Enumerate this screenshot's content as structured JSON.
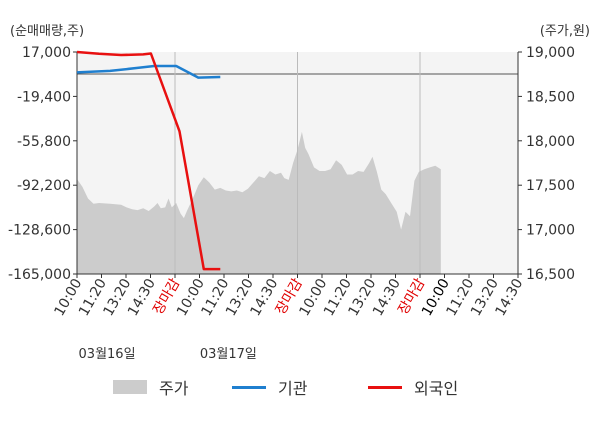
{
  "chart_data": {
    "type": "line",
    "left_unit": "(순매매량,주)",
    "right_unit": "(주가,원)",
    "left_axis": {
      "ticks": [
        "17,000",
        "-19,400",
        "-55,800",
        "-92,200",
        "-128,600",
        "-165,000"
      ],
      "min": -165000,
      "max": 17000
    },
    "right_axis": {
      "ticks": [
        "19,000",
        "18,500",
        "18,000",
        "17,500",
        "17,000",
        "16,500"
      ],
      "min": 16500,
      "max": 19000
    },
    "x_labels": [
      "10:00",
      "11:20",
      "13:20",
      "14:30",
      "장마감",
      "10:00",
      "11:20",
      "13:20",
      "14:30",
      "장마감",
      "10:00",
      "11:20",
      "13:20",
      "14:30",
      "장마감",
      "10:00",
      "11:20",
      "13:20",
      "14:30"
    ],
    "x_label_colors": [
      "#333333",
      "#333333",
      "#333333",
      "#333333",
      "#e00000",
      "#333333",
      "#333333",
      "#333333",
      "#333333",
      "#e00000",
      "#333333",
      "#333333",
      "#333333",
      "#333333",
      "#e00000",
      "#000000",
      "#333333",
      "#333333",
      "#333333"
    ],
    "dates": [
      "03월16일",
      "03월17일"
    ],
    "series": [
      {
        "name": "주가",
        "kind": "area",
        "axis": "right",
        "color": "#cccccc",
        "values": [
          {
            "x": 0,
            "y": 17570
          },
          {
            "x": 0.5,
            "y": 17480
          },
          {
            "x": 1,
            "y": 17350
          },
          {
            "x": 1.5,
            "y": 17290
          },
          {
            "x": 2,
            "y": 17300
          },
          {
            "x": 3,
            "y": 17290
          },
          {
            "x": 4,
            "y": 17280
          },
          {
            "x": 4.5,
            "y": 17250
          },
          {
            "x": 5,
            "y": 17230
          },
          {
            "x": 5.5,
            "y": 17220
          },
          {
            "x": 6,
            "y": 17240
          },
          {
            "x": 6.5,
            "y": 17210
          },
          {
            "x": 7,
            "y": 17260
          },
          {
            "x": 7.3,
            "y": 17300
          },
          {
            "x": 7.6,
            "y": 17240
          },
          {
            "x": 8.0,
            "y": 17250
          },
          {
            "x": 8.3,
            "y": 17350
          },
          {
            "x": 8.6,
            "y": 17250
          },
          {
            "x": 9,
            "y": 17300
          },
          {
            "x": 9.4,
            "y": 17180
          },
          {
            "x": 9.7,
            "y": 17130
          },
          {
            "x": 10,
            "y": 17220
          },
          {
            "x": 10.5,
            "y": 17350
          },
          {
            "x": 11,
            "y": 17500
          },
          {
            "x": 11.5,
            "y": 17590
          },
          {
            "x": 12,
            "y": 17530
          },
          {
            "x": 12.5,
            "y": 17450
          },
          {
            "x": 13,
            "y": 17470
          },
          {
            "x": 13.5,
            "y": 17440
          },
          {
            "x": 14,
            "y": 17430
          },
          {
            "x": 14.5,
            "y": 17440
          },
          {
            "x": 15,
            "y": 17420
          },
          {
            "x": 15.5,
            "y": 17460
          },
          {
            "x": 16,
            "y": 17530
          },
          {
            "x": 16.5,
            "y": 17600
          },
          {
            "x": 17,
            "y": 17580
          },
          {
            "x": 17.5,
            "y": 17660
          },
          {
            "x": 18,
            "y": 17620
          },
          {
            "x": 18.5,
            "y": 17640
          },
          {
            "x": 18.8,
            "y": 17580
          },
          {
            "x": 19.2,
            "y": 17560
          },
          {
            "x": 19.6,
            "y": 17750
          },
          {
            "x": 20,
            "y": 17900
          },
          {
            "x": 20.4,
            "y": 18100
          },
          {
            "x": 20.7,
            "y": 17920
          },
          {
            "x": 21,
            "y": 17850
          },
          {
            "x": 21.5,
            "y": 17700
          },
          {
            "x": 22,
            "y": 17660
          },
          {
            "x": 22.5,
            "y": 17660
          },
          {
            "x": 23,
            "y": 17680
          },
          {
            "x": 23.5,
            "y": 17780
          },
          {
            "x": 24,
            "y": 17730
          },
          {
            "x": 24.5,
            "y": 17620
          },
          {
            "x": 25,
            "y": 17620
          },
          {
            "x": 25.5,
            "y": 17660
          },
          {
            "x": 26,
            "y": 17650
          },
          {
            "x": 26.5,
            "y": 17750
          },
          {
            "x": 26.8,
            "y": 17820
          },
          {
            "x": 27.2,
            "y": 17650
          },
          {
            "x": 27.6,
            "y": 17450
          },
          {
            "x": 28,
            "y": 17400
          },
          {
            "x": 28.5,
            "y": 17300
          },
          {
            "x": 29,
            "y": 17200
          },
          {
            "x": 29.4,
            "y": 17000
          },
          {
            "x": 29.8,
            "y": 17200
          },
          {
            "x": 30.2,
            "y": 17150
          },
          {
            "x": 30.6,
            "y": 17550
          },
          {
            "x": 31,
            "y": 17650
          },
          {
            "x": 31.5,
            "y": 17680
          },
          {
            "x": 32,
            "y": 17700
          },
          {
            "x": 32.5,
            "y": 17720
          },
          {
            "x": 33,
            "y": 17680
          }
        ]
      },
      {
        "name": "기관",
        "kind": "line",
        "axis": "left",
        "color": "#1f7fcf",
        "values": [
          {
            "x": 0,
            "y": 252
          },
          {
            "x": 3,
            "y": 1500
          },
          {
            "x": 5.5,
            "y": 4000
          },
          {
            "x": 7,
            "y": 5500
          },
          {
            "x": 9,
            "y": 5500
          },
          {
            "x": 11,
            "y": -4000
          },
          {
            "x": 13,
            "y": -3500
          }
        ]
      },
      {
        "name": "외국인",
        "kind": "line",
        "axis": "left",
        "color": "#e81010",
        "values": [
          {
            "x": 0,
            "y": 17000
          },
          {
            "x": 2,
            "y": 15500
          },
          {
            "x": 4,
            "y": 14500
          },
          {
            "x": 6,
            "y": 15000
          },
          {
            "x": 6.7,
            "y": 15800
          },
          {
            "x": 9.3,
            "y": -48000
          },
          {
            "x": 11.5,
            "y": -161000
          },
          {
            "x": 12,
            "y": -161000
          },
          {
            "x": 13,
            "y": -161000
          }
        ]
      }
    ]
  },
  "legend": [
    {
      "label": "주가",
      "color": "#cccccc",
      "kind": "box"
    },
    {
      "label": "기관",
      "color": "#1f7fcf",
      "kind": "line"
    },
    {
      "label": "외국인",
      "color": "#e81010",
      "kind": "line"
    }
  ]
}
